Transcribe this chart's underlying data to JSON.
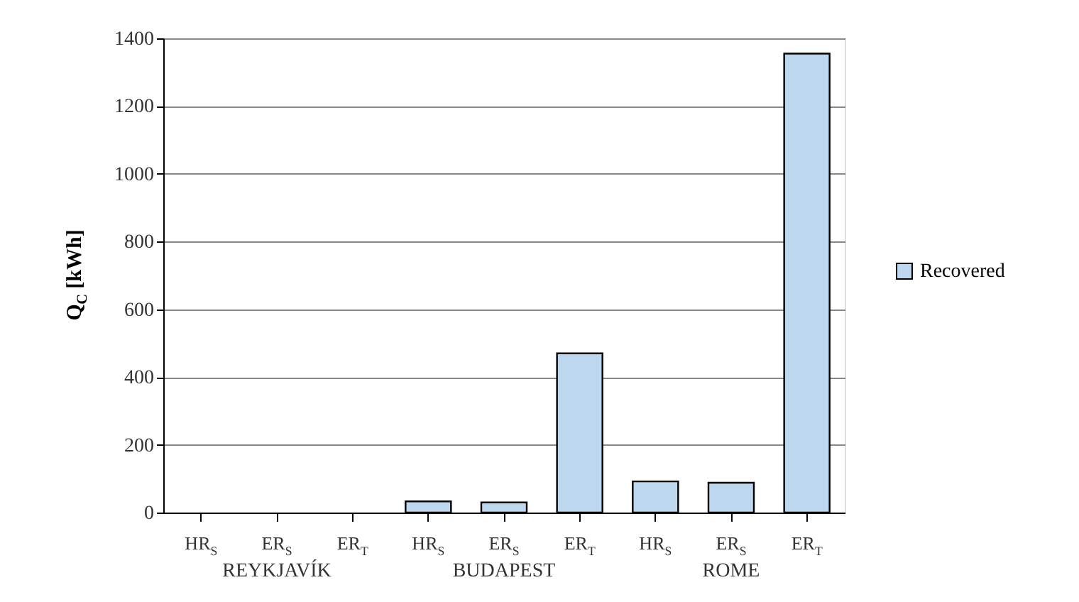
{
  "chart_data": {
    "type": "bar",
    "ylabel": "Q$_{C}$ [kWh]",
    "categories": [
      "HR$_{S}$",
      "ER$_{S}$",
      "ER$_{T}$",
      "HR$_{S}$",
      "ER$_{S}$",
      "ER$_{T}$",
      "HR$_{S}$",
      "ER$_{S}$",
      "ER$_{T}$"
    ],
    "series": [
      {
        "name": "Recovered",
        "color": "#bdd7ee",
        "values": [
          null,
          null,
          null,
          33,
          30,
          470,
          92,
          88,
          1355
        ]
      }
    ],
    "annotations": [
      "REYKJAVÍK",
      "BUDAPEST",
      "ROME"
    ],
    "ylim": [
      0,
      1400
    ],
    "yticks": [
      0,
      200,
      400,
      600,
      800,
      {
        "value": 1000,
        "label": "1000"
      },
      {
        "value": 1200,
        "label": "1200"
      },
      {
        "value": 1400,
        "label": "1400"
      }
    ],
    "grid": "y",
    "legend": "right"
  }
}
